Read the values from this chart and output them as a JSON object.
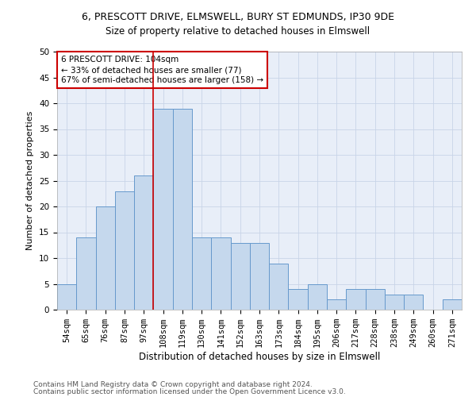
{
  "title1": "6, PRESCOTT DRIVE, ELMSWELL, BURY ST EDMUNDS, IP30 9DE",
  "title2": "Size of property relative to detached houses in Elmswell",
  "xlabel": "Distribution of detached houses by size in Elmswell",
  "ylabel": "Number of detached properties",
  "bar_labels": [
    "54sqm",
    "65sqm",
    "76sqm",
    "87sqm",
    "97sqm",
    "108sqm",
    "119sqm",
    "130sqm",
    "141sqm",
    "152sqm",
    "163sqm",
    "173sqm",
    "184sqm",
    "195sqm",
    "206sqm",
    "217sqm",
    "228sqm",
    "238sqm",
    "249sqm",
    "260sqm",
    "271sqm"
  ],
  "bar_values": [
    5,
    14,
    20,
    23,
    26,
    39,
    39,
    14,
    14,
    13,
    13,
    9,
    4,
    5,
    2,
    4,
    4,
    3,
    3,
    0,
    2
  ],
  "bar_color": "#c5d8ed",
  "bar_edge_color": "#6699cc",
  "vline_x_index": 5,
  "vline_color": "#cc0000",
  "annotation_line1": "6 PRESCOTT DRIVE: 104sqm",
  "annotation_line2": "← 33% of detached houses are smaller (77)",
  "annotation_line3": "67% of semi-detached houses are larger (158) →",
  "annotation_box_color": "#ffffff",
  "annotation_box_edge": "#cc0000",
  "ylim": [
    0,
    50
  ],
  "yticks": [
    0,
    5,
    10,
    15,
    20,
    25,
    30,
    35,
    40,
    45,
    50
  ],
  "grid_color": "#c8d4e8",
  "bg_color": "#e8eef8",
  "footer1": "Contains HM Land Registry data © Crown copyright and database right 2024.",
  "footer2": "Contains public sector information licensed under the Open Government Licence v3.0.",
  "title1_fontsize": 9,
  "title2_fontsize": 8.5,
  "xlabel_fontsize": 8.5,
  "ylabel_fontsize": 8,
  "tick_fontsize": 7.5,
  "annotation_fontsize": 7.5,
  "footer_fontsize": 6.5
}
